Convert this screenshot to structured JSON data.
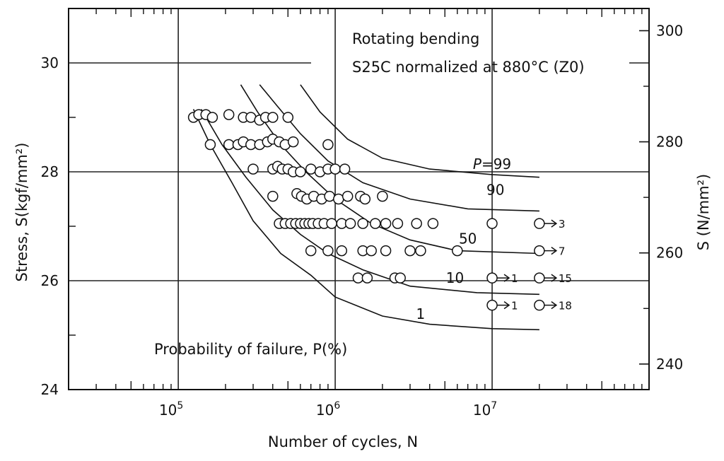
{
  "chart_data": {
    "type": "scatter",
    "title": "Rotating bending",
    "subtitle": "S25C normalized at 880°C (Z0)",
    "xlabel": "Number of cycles, N",
    "ylabel": "Stress, S(kgf/mm²)",
    "y2label": "S (N/mm²)",
    "x_scale": "log",
    "xlim": [
      20000,
      100000000
    ],
    "ylim": [
      24,
      31
    ],
    "y2lim": [
      235.4,
      304.0
    ],
    "grid": "major decades and 2 kgf/mm² steps",
    "x_ticks": [
      {
        "value": 100000,
        "base": "10",
        "exp": "5"
      },
      {
        "value": 1000000,
        "base": "10",
        "exp": "6"
      },
      {
        "value": 10000000,
        "base": "10",
        "exp": "7"
      }
    ],
    "y_ticks": [
      {
        "value": 24,
        "label": "24"
      },
      {
        "value": 26,
        "label": "26"
      },
      {
        "value": 28,
        "label": "28"
      },
      {
        "value": 30,
        "label": "30"
      }
    ],
    "y2_ticks": [
      {
        "value": 240,
        "label": "240"
      },
      {
        "value": 260,
        "label": "260"
      },
      {
        "value": 280,
        "label": "280"
      },
      {
        "value": 300,
        "label": "300"
      }
    ],
    "annotation": "Probability of failure, P(%)",
    "curves": [
      {
        "label": "1",
        "points": [
          [
            125000,
            29.15
          ],
          [
            160000,
            28.5
          ],
          [
            220000,
            27.8
          ],
          [
            300000,
            27.1
          ],
          [
            450000,
            26.5
          ],
          [
            700000,
            26.1
          ],
          [
            1000000,
            25.7
          ],
          [
            2000000,
            25.35
          ],
          [
            4000000,
            25.2
          ],
          [
            10000000,
            25.12
          ],
          [
            20000000,
            25.1
          ]
        ]
      },
      {
        "label": "10",
        "points": [
          [
            140000,
            29.15
          ],
          [
            190000,
            28.5
          ],
          [
            270000,
            27.9
          ],
          [
            400000,
            27.3
          ],
          [
            600000,
            26.85
          ],
          [
            900000,
            26.5
          ],
          [
            1500000,
            26.2
          ],
          [
            3000000,
            25.9
          ],
          [
            8000000,
            25.78
          ],
          [
            20000000,
            25.75
          ]
        ]
      },
      {
        "label": "50",
        "points": [
          [
            250000,
            29.6
          ],
          [
            320000,
            29.1
          ],
          [
            450000,
            28.5
          ],
          [
            650000,
            28.0
          ],
          [
            1000000,
            27.5
          ],
          [
            1700000,
            27.05
          ],
          [
            3000000,
            26.75
          ],
          [
            6000000,
            26.55
          ],
          [
            20000000,
            26.5
          ]
        ]
      },
      {
        "label": "90",
        "points": [
          [
            330000,
            29.6
          ],
          [
            430000,
            29.2
          ],
          [
            600000,
            28.7
          ],
          [
            900000,
            28.2
          ],
          [
            1500000,
            27.8
          ],
          [
            3000000,
            27.5
          ],
          [
            7000000,
            27.32
          ],
          [
            20000000,
            27.28
          ]
        ]
      },
      {
        "label": "P=99",
        "points": [
          [
            600000,
            29.6
          ],
          [
            800000,
            29.1
          ],
          [
            1200000,
            28.6
          ],
          [
            2000000,
            28.25
          ],
          [
            4000000,
            28.05
          ],
          [
            10000000,
            27.95
          ],
          [
            20000000,
            27.9
          ]
        ]
      }
    ],
    "points": [
      [
        125000,
        29.0
      ],
      [
        135000,
        29.05
      ],
      [
        150000,
        29.05
      ],
      [
        165000,
        29.0
      ],
      [
        210000,
        29.05
      ],
      [
        260000,
        29.0
      ],
      [
        290000,
        29.0
      ],
      [
        330000,
        28.95
      ],
      [
        360000,
        29.0
      ],
      [
        400000,
        29.0
      ],
      [
        500000,
        29.0
      ],
      [
        160000,
        28.5
      ],
      [
        210000,
        28.5
      ],
      [
        240000,
        28.5
      ],
      [
        260000,
        28.55
      ],
      [
        290000,
        28.5
      ],
      [
        330000,
        28.5
      ],
      [
        370000,
        28.55
      ],
      [
        400000,
        28.6
      ],
      [
        440000,
        28.55
      ],
      [
        480000,
        28.5
      ],
      [
        540000,
        28.55
      ],
      [
        900000,
        28.5
      ],
      [
        300000,
        28.05
      ],
      [
        400000,
        28.05
      ],
      [
        430000,
        28.1
      ],
      [
        460000,
        28.05
      ],
      [
        500000,
        28.05
      ],
      [
        540000,
        28.0
      ],
      [
        600000,
        28.0
      ],
      [
        700000,
        28.05
      ],
      [
        800000,
        28.0
      ],
      [
        900000,
        28.05
      ],
      [
        1000000,
        28.05
      ],
      [
        1150000,
        28.05
      ],
      [
        400000,
        27.55
      ],
      [
        570000,
        27.6
      ],
      [
        610000,
        27.55
      ],
      [
        660000,
        27.5
      ],
      [
        730000,
        27.55
      ],
      [
        820000,
        27.5
      ],
      [
        920000,
        27.55
      ],
      [
        1050000,
        27.5
      ],
      [
        1200000,
        27.55
      ],
      [
        1450000,
        27.55
      ],
      [
        1550000,
        27.5
      ],
      [
        2000000,
        27.55
      ],
      [
        440000,
        27.05
      ],
      [
        480000,
        27.05
      ],
      [
        520000,
        27.05
      ],
      [
        560000,
        27.05
      ],
      [
        600000,
        27.05
      ],
      [
        640000,
        27.05
      ],
      [
        680000,
        27.05
      ],
      [
        720000,
        27.05
      ],
      [
        780000,
        27.05
      ],
      [
        850000,
        27.05
      ],
      [
        950000,
        27.05
      ],
      [
        1100000,
        27.05
      ],
      [
        1250000,
        27.05
      ],
      [
        1500000,
        27.05
      ],
      [
        1800000,
        27.05
      ],
      [
        2100000,
        27.05
      ],
      [
        2500000,
        27.05
      ],
      [
        3300000,
        27.05
      ],
      [
        4200000,
        27.05
      ],
      [
        10000000,
        27.05
      ],
      [
        700000,
        26.55
      ],
      [
        900000,
        26.55
      ],
      [
        1100000,
        26.55
      ],
      [
        1500000,
        26.55
      ],
      [
        1700000,
        26.55
      ],
      [
        2100000,
        26.55
      ],
      [
        3000000,
        26.55
      ],
      [
        3500000,
        26.55
      ],
      [
        6000000,
        26.55
      ],
      [
        1400000,
        26.05
      ],
      [
        1600000,
        26.05
      ],
      [
        2400000,
        26.05
      ],
      [
        2600000,
        26.05
      ]
    ],
    "runouts": [
      {
        "x": 20000000,
        "y": 27.05,
        "count": "3"
      },
      {
        "x": 20000000,
        "y": 26.55,
        "count": "7"
      },
      {
        "x": 10000000,
        "y": 26.05,
        "count": "1"
      },
      {
        "x": 20000000,
        "y": 26.05,
        "count": "15"
      },
      {
        "x": 10000000,
        "y": 25.55,
        "count": "1"
      },
      {
        "x": 20000000,
        "y": 25.55,
        "count": "18"
      }
    ]
  }
}
